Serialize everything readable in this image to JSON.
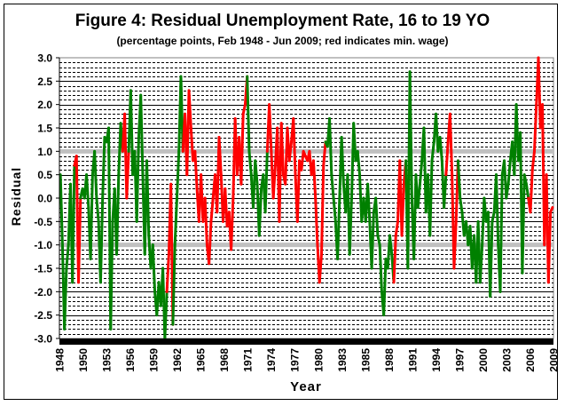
{
  "chart_data": {
    "type": "line",
    "title": "Figure 4: Residual Unemployment Rate, 16 to 19 YO",
    "subtitle": "(percentage points, Feb 1948 - Jun 2009; red indicates min. wage)",
    "xlabel": "Year",
    "ylabel": "Residual",
    "ylim": [
      -3.0,
      3.0
    ],
    "xlim": [
      1948,
      2009.5
    ],
    "y_ticks": [
      "3.0",
      "2.5",
      "2.0",
      "1.5",
      "1.0",
      "0.5",
      "0.0",
      "-0.5",
      "-1.0",
      "-1.5",
      "-2.0",
      "-2.5",
      "-3.0"
    ],
    "x_ticks": [
      "1948",
      "1950",
      "1953",
      "1956",
      "1959",
      "1962",
      "1965",
      "1968",
      "1971",
      "1974",
      "1977",
      "1980",
      "1983",
      "1985",
      "1988",
      "1991",
      "1994",
      "1997",
      "2000",
      "2003",
      "2006",
      "2009"
    ],
    "grid": {
      "major_step": 0.5,
      "minor_step": 0.1,
      "major_style": "solid",
      "minor_style": "dashed"
    },
    "reference_lines": [
      1.0,
      -1.0
    ],
    "colors": {
      "default": "#008000",
      "min_wage": "#ff0000",
      "reference": "#c0c0c0",
      "axis": "#000000"
    },
    "min_wage_periods": [
      [
        1950.0,
        1950.6
      ],
      [
        1956.0,
        1956.7
      ],
      [
        1961.3,
        1962.0
      ],
      [
        1963.3,
        1971.3
      ],
      [
        1973.9,
        1981.0
      ],
      [
        1989.6,
        1991.0
      ],
      [
        1996.2,
        1997.6
      ],
      [
        2006.5,
        2009.5
      ]
    ],
    "quarterly_values": [
      [
        1948,
        [
          0.5,
          -1.0,
          -2.8,
          -1.5
        ]
      ],
      [
        1949,
        [
          -1.0,
          0.3,
          -1.8,
          0.7
        ]
      ],
      [
        1950,
        [
          0.9,
          -1.8,
          0.0,
          0.2
        ]
      ],
      [
        1951,
        [
          0.0,
          0.5,
          -0.2,
          -1.3
        ]
      ],
      [
        1952,
        [
          0.5,
          1.0,
          0.0,
          -0.5
        ]
      ],
      [
        1953,
        [
          -1.8,
          0.0,
          1.3,
          1.2
        ]
      ],
      [
        1954,
        [
          1.5,
          -2.8,
          -0.5,
          0.2
        ]
      ],
      [
        1955,
        [
          -1.2,
          0.5,
          1.6,
          1.0
        ]
      ],
      [
        1956,
        [
          1.8,
          0.0,
          1.0,
          2.3
        ]
      ],
      [
        1957,
        [
          0.5,
          1.0,
          -0.5,
          1.3
        ]
      ],
      [
        1958,
        [
          2.2,
          0.5,
          -1.2,
          0.8
        ]
      ],
      [
        1959,
        [
          -0.8,
          -1.5,
          -1.0,
          -2.0
        ]
      ],
      [
        1960,
        [
          -2.5,
          -1.8,
          -2.3,
          -1.5
        ]
      ],
      [
        1961,
        [
          -3.0,
          -2.0,
          -1.2,
          0.3
        ]
      ],
      [
        1962,
        [
          -2.7,
          -1.0,
          0.0,
          1.0
        ]
      ],
      [
        1963,
        [
          2.6,
          1.0,
          1.8,
          0.5
        ]
      ],
      [
        1964,
        [
          2.3,
          1.5,
          0.8,
          1.0
        ]
      ],
      [
        1965,
        [
          0.2,
          -0.5,
          0.5,
          -0.5
        ]
      ],
      [
        1966,
        [
          0.0,
          -1.0,
          -1.4,
          -0.5
        ]
      ],
      [
        1967,
        [
          0.0,
          0.5,
          -0.3,
          1.3
        ]
      ],
      [
        1968,
        [
          0.5,
          -0.5,
          0.2,
          -0.6
        ]
      ],
      [
        1969,
        [
          -0.3,
          -1.1,
          0.0,
          1.7
        ]
      ],
      [
        1970,
        [
          0.5,
          1.3,
          0.3,
          1.8
        ]
      ],
      [
        1971,
        [
          2.0,
          2.6,
          1.0,
          0.5
        ]
      ],
      [
        1972,
        [
          -0.2,
          0.8,
          0.3,
          -0.8
        ]
      ],
      [
        1973,
        [
          0.2,
          0.5,
          -0.3,
          1.0
        ]
      ],
      [
        1974,
        [
          2.0,
          1.0,
          0.0,
          0.7
        ]
      ],
      [
        1975,
        [
          1.5,
          -0.5,
          1.6,
          0.5
        ]
      ],
      [
        1976,
        [
          0.3,
          1.5,
          0.8,
          1.2
        ]
      ],
      [
        1977,
        [
          1.7,
          0.5,
          -0.5,
          0.8
        ]
      ],
      [
        1978,
        [
          0.6,
          1.0,
          0.9,
          0.8
        ]
      ],
      [
        1979,
        [
          1.0,
          0.5,
          0.8,
          0.0
        ]
      ],
      [
        1980,
        [
          -1.0,
          -1.8,
          -1.2,
          0.7
        ]
      ],
      [
        1981,
        [
          1.2,
          1.1,
          1.7,
          0.5
        ]
      ],
      [
        1982,
        [
          0.0,
          -0.5,
          -1.3,
          0.0
        ]
      ],
      [
        1983,
        [
          1.3,
          0.3,
          -0.3,
          0.5
        ]
      ],
      [
        1984,
        [
          -1.2,
          0.0,
          1.6,
          0.8
        ]
      ],
      [
        1985,
        [
          1.0,
          0.5,
          -0.5,
          0.0
        ]
      ],
      [
        1986,
        [
          -0.5,
          0.3,
          -0.5,
          -1.5
        ]
      ],
      [
        1987,
        [
          -0.3,
          0.0,
          -0.8,
          -1.0
        ]
      ],
      [
        1988,
        [
          -2.0,
          -2.5,
          -1.3,
          -1.5
        ]
      ],
      [
        1989,
        [
          -0.8,
          -1.2,
          -1.8,
          -0.8
        ]
      ],
      [
        1990,
        [
          -0.5,
          0.8,
          -0.8,
          0.3
        ]
      ],
      [
        1991,
        [
          0.8,
          -1.5,
          2.7,
          0.0
        ]
      ],
      [
        1992,
        [
          -1.3,
          0.5,
          -0.2,
          0.3
        ]
      ],
      [
        1993,
        [
          0.8,
          1.5,
          -0.3,
          0.5
        ]
      ],
      [
        1994,
        [
          -0.8,
          0.8,
          1.2,
          1.8
        ]
      ],
      [
        1995,
        [
          1.0,
          1.3,
          0.8,
          -0.2
        ]
      ],
      [
        1996,
        [
          0.5,
          1.2,
          1.8,
          0.5
        ]
      ],
      [
        1997,
        [
          -1.5,
          -0.5,
          0.8,
          0.0
        ]
      ],
      [
        1998,
        [
          -0.3,
          -0.8,
          -0.5,
          -1.0
        ]
      ],
      [
        1999,
        [
          -0.6,
          -1.5,
          -0.8,
          -1.8
        ]
      ],
      [
        2000,
        [
          -0.5,
          -1.8,
          -1.0,
          0.0
        ]
      ],
      [
        2001,
        [
          -0.5,
          -0.3,
          -2.1,
          -0.5
        ]
      ],
      [
        2002,
        [
          -0.3,
          0.5,
          -1.0,
          -2.0
        ]
      ],
      [
        2003,
        [
          0.5,
          0.8,
          0.0,
          0.3
        ]
      ],
      [
        2004,
        [
          0.8,
          1.2,
          0.5,
          2.0
        ]
      ],
      [
        2005,
        [
          0.8,
          1.4,
          -1.6,
          0.5
        ]
      ],
      [
        2006,
        [
          0.3,
          0.0,
          -0.3,
          0.6
        ]
      ],
      [
        2007,
        [
          1.0,
          2.0,
          3.0,
          1.5
        ]
      ],
      [
        2008,
        [
          2.0,
          -1.0,
          0.5,
          -1.8
        ]
      ],
      [
        2009,
        [
          -0.3,
          -0.2
        ]
      ]
    ]
  }
}
